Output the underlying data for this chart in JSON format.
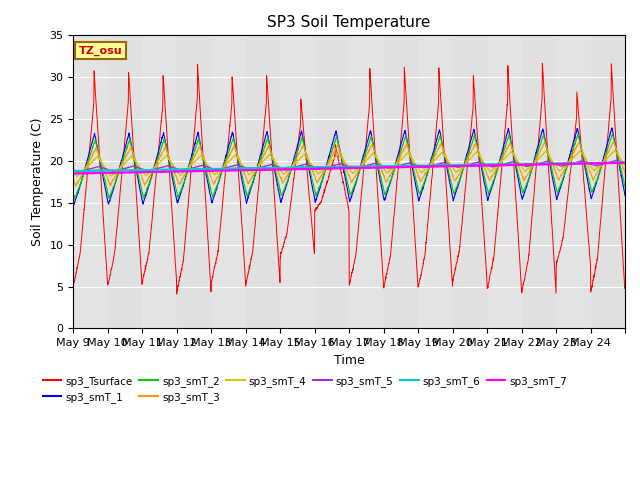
{
  "title": "SP3 Soil Temperature",
  "ylabel": "Soil Temperature (C)",
  "xlabel": "Time",
  "ylim": [
    0,
    35
  ],
  "x_tick_labels": [
    "May 9",
    "May 10",
    "May 11",
    "May 12",
    "May 13",
    "May 14",
    "May 15",
    "May 16",
    "May 17",
    "May 18",
    "May 19",
    "May 20",
    "May 21",
    "May 22",
    "May 23",
    "May 24"
  ],
  "tz_label": "TZ_osu",
  "series_colors": {
    "sp3_Tsurface": "#ff0000",
    "sp3_smT_1": "#0000ff",
    "sp3_smT_2": "#00cc00",
    "sp3_smT_3": "#ff9900",
    "sp3_smT_4": "#cccc00",
    "sp3_smT_5": "#9933cc",
    "sp3_smT_6": "#00cccc",
    "sp3_smT_7": "#ff00ff"
  },
  "bg_color": "#e8e8e8",
  "fig_color": "#ffffff",
  "title_fontsize": 11,
  "axis_label_fontsize": 9,
  "tick_fontsize": 8
}
